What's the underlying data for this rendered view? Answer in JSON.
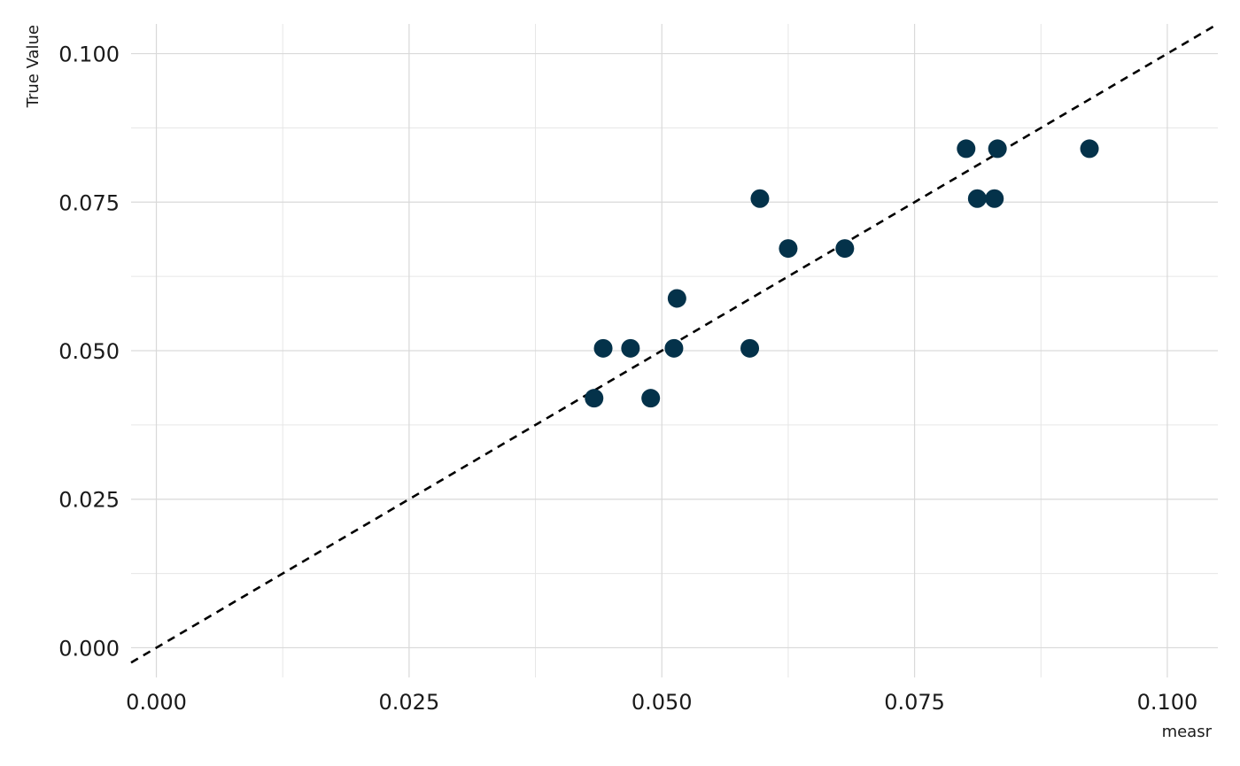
{
  "chart_data": {
    "type": "scatter",
    "title": "",
    "xlabel": "measr",
    "ylabel": "True Value",
    "xlim": [
      -0.0025,
      0.105
    ],
    "ylim": [
      -0.005,
      0.105
    ],
    "x_ticks": [
      0.0,
      0.025,
      0.05,
      0.075,
      0.1
    ],
    "x_tick_labels": [
      "0.000",
      "0.025",
      "0.050",
      "0.075",
      "0.100"
    ],
    "y_ticks": [
      0.0,
      0.025,
      0.05,
      0.075,
      0.1
    ],
    "y_tick_labels": [
      "0.000",
      "0.025",
      "0.050",
      "0.075",
      "0.100"
    ],
    "x_minor_ticks": [
      0.0125,
      0.0375,
      0.0625,
      0.0875
    ],
    "y_minor_ticks": [
      0.0125,
      0.0375,
      0.0625,
      0.0875
    ],
    "grid": true,
    "legend": "none",
    "point_color": "#04324a",
    "reference_line": {
      "style": "dashed",
      "color": "#000000",
      "slope": 1,
      "intercept": 0
    },
    "points": [
      {
        "x": 0.0433,
        "y": 0.042
      },
      {
        "x": 0.0442,
        "y": 0.0504
      },
      {
        "x": 0.0469,
        "y": 0.0504
      },
      {
        "x": 0.0489,
        "y": 0.042
      },
      {
        "x": 0.0512,
        "y": 0.0504
      },
      {
        "x": 0.0515,
        "y": 0.0588
      },
      {
        "x": 0.0587,
        "y": 0.0504
      },
      {
        "x": 0.0597,
        "y": 0.0756
      },
      {
        "x": 0.0625,
        "y": 0.0672
      },
      {
        "x": 0.0681,
        "y": 0.0672
      },
      {
        "x": 0.0801,
        "y": 0.084
      },
      {
        "x": 0.0812,
        "y": 0.0756
      },
      {
        "x": 0.0829,
        "y": 0.0756
      },
      {
        "x": 0.0832,
        "y": 0.084
      },
      {
        "x": 0.0923,
        "y": 0.084
      }
    ]
  }
}
